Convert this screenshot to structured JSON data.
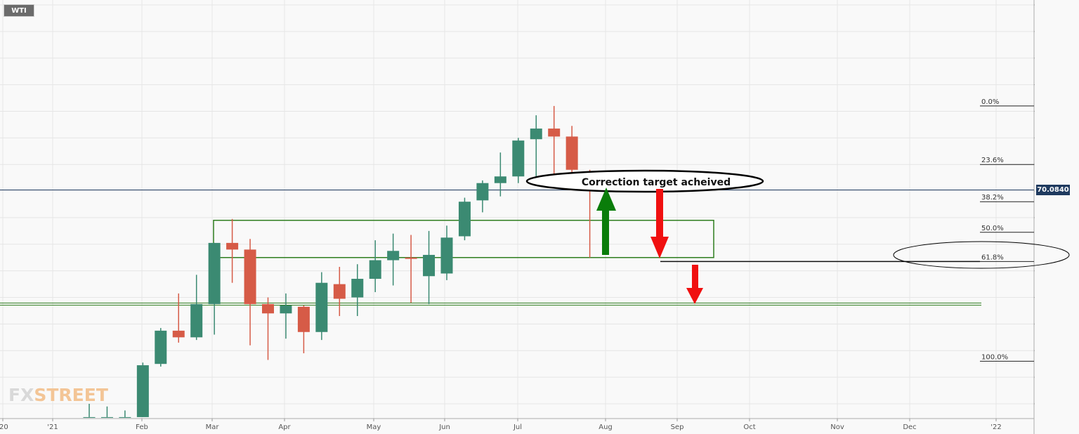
{
  "symbol": "WTI",
  "logo": {
    "part1": "FX",
    "part2": "STREET"
  },
  "current_price_label": "70.0840",
  "annotation_text": "Correction target acheived",
  "colors": {
    "up": "#3b8a72",
    "down": "#d65b47",
    "zone": "#2e7d1e",
    "arrow_up": "#0a7d0a",
    "arrow_down": "#f01010",
    "price_line": "#1f3a5f"
  },
  "chart_data": {
    "type": "candlestick",
    "y_range": [
      53,
      84.5
    ],
    "y_ticks": [
      "84.0000",
      "82.0000",
      "80.0000",
      "78.0000",
      "76.0000",
      "74.0000",
      "72.0000",
      "70.0000",
      "68.0000",
      "66.0000",
      "64.0000",
      "62.0000",
      "60.0000",
      "58.0000",
      "56.0000",
      "54.0000"
    ],
    "x_labels": [
      "'20",
      "'21",
      "Feb",
      "Mar",
      "Apr",
      "May",
      "Jun",
      "Jul",
      "Aug",
      "Sep",
      "Oct",
      "Nov",
      "Dec",
      "'22"
    ],
    "fib_levels": [
      {
        "label": "0.0%",
        "value": 76.4
      },
      {
        "label": "23.6%",
        "value": 72.0
      },
      {
        "label": "38.2%",
        "value": 69.2
      },
      {
        "label": "50.0%",
        "value": 66.9
      },
      {
        "label": "61.8%",
        "value": 64.7
      },
      {
        "label": "100.0%",
        "value": 57.2
      }
    ],
    "current_price": 70.084,
    "candles": [
      {
        "week": 0,
        "open": 53.0,
        "high": 54.0,
        "low": 53.0,
        "close": 53.0
      },
      {
        "week": 1,
        "open": 53.0,
        "high": 53.8,
        "low": 53.0,
        "close": 53.0
      },
      {
        "week": 2,
        "open": 53.0,
        "high": 53.5,
        "low": 53.0,
        "close": 53.0
      },
      {
        "week": 3,
        "open": 53.0,
        "high": 57.1,
        "low": 53.0,
        "close": 56.9
      },
      {
        "week": 4,
        "open": 57.0,
        "high": 59.7,
        "low": 56.8,
        "close": 59.5
      },
      {
        "week": 5,
        "open": 59.5,
        "high": 62.3,
        "low": 58.6,
        "close": 59.0
      },
      {
        "week": 6,
        "open": 59.0,
        "high": 63.7,
        "low": 58.8,
        "close": 61.5
      },
      {
        "week": 7,
        "open": 61.5,
        "high": 66.1,
        "low": 59.2,
        "close": 66.1
      },
      {
        "week": 8,
        "open": 66.1,
        "high": 67.9,
        "low": 63.1,
        "close": 65.6
      },
      {
        "week": 9,
        "open": 65.6,
        "high": 66.4,
        "low": 58.4,
        "close": 61.5
      },
      {
        "week": 10,
        "open": 61.5,
        "high": 62.0,
        "low": 57.3,
        "close": 60.8
      },
      {
        "week": 11,
        "open": 60.8,
        "high": 62.3,
        "low": 58.9,
        "close": 61.4
      },
      {
        "week": 12,
        "open": 61.3,
        "high": 61.4,
        "low": 57.8,
        "close": 59.4
      },
      {
        "week": 13,
        "open": 59.4,
        "high": 63.9,
        "low": 58.8,
        "close": 63.1
      },
      {
        "week": 14,
        "open": 63.0,
        "high": 64.3,
        "low": 60.6,
        "close": 61.9
      },
      {
        "week": 15,
        "open": 62.0,
        "high": 64.5,
        "low": 60.6,
        "close": 63.4
      },
      {
        "week": 16,
        "open": 63.4,
        "high": 66.3,
        "low": 62.4,
        "close": 64.8
      },
      {
        "week": 17,
        "open": 64.8,
        "high": 66.8,
        "low": 62.9,
        "close": 65.5
      },
      {
        "week": 18,
        "open": 65.0,
        "high": 66.7,
        "low": 61.6,
        "close": 64.9
      },
      {
        "week": 19,
        "open": 63.6,
        "high": 67.0,
        "low": 61.5,
        "close": 65.2
      },
      {
        "week": 20,
        "open": 63.8,
        "high": 67.4,
        "low": 63.3,
        "close": 66.5
      },
      {
        "week": 21,
        "open": 66.6,
        "high": 69.5,
        "low": 66.3,
        "close": 69.2
      },
      {
        "week": 22,
        "open": 69.3,
        "high": 70.8,
        "low": 68.4,
        "close": 70.6
      },
      {
        "week": 23,
        "open": 70.6,
        "high": 72.9,
        "low": 69.6,
        "close": 71.1
      },
      {
        "week": 24,
        "open": 71.1,
        "high": 74.0,
        "low": 70.6,
        "close": 73.8
      },
      {
        "week": 25,
        "open": 73.9,
        "high": 75.7,
        "low": 71.0,
        "close": 74.7
      },
      {
        "week": 26,
        "open": 74.7,
        "high": 76.4,
        "low": 70.2,
        "close": 74.1
      },
      {
        "week": 27,
        "open": 74.1,
        "high": 74.9,
        "low": 70.2,
        "close": 71.6
      },
      {
        "week": 28,
        "open": 71.3,
        "high": 71.6,
        "low": 65.0,
        "close": 70.1
      }
    ],
    "zone": {
      "x_from_week": 7,
      "x_to_week": 35,
      "y_top": 67.8,
      "y_bottom": 65.0
    },
    "support_line": {
      "value": 61.5
    }
  }
}
